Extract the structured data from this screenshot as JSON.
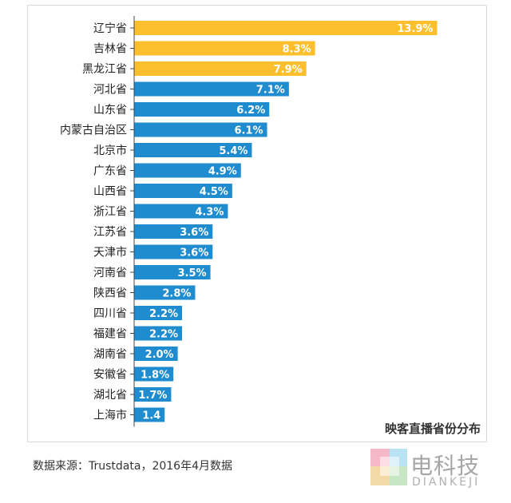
{
  "chart_data": {
    "type": "bar",
    "orientation": "horizontal",
    "title": "映客直播省份分布",
    "categories": [
      "辽宁省",
      "吉林省",
      "黑龙江省",
      "河北省",
      "山东省",
      "内蒙古自治区",
      "北京市",
      "广东省",
      "山西省",
      "浙江省",
      "江苏省",
      "天津市",
      "河南省",
      "陕西省",
      "四川省",
      "福建省",
      "湖南省",
      "安徽省",
      "湖北省",
      "上海市"
    ],
    "values": [
      13.9,
      8.3,
      7.9,
      7.1,
      6.2,
      6.1,
      5.4,
      4.9,
      4.5,
      4.3,
      3.6,
      3.6,
      3.5,
      2.8,
      2.2,
      2.2,
      2.0,
      1.8,
      1.7,
      1.4
    ],
    "value_labels": [
      "13.9%",
      "8.3%",
      "7.9%",
      "7.1%",
      "6.2%",
      "6.1%",
      "5.4%",
      "4.9%",
      "4.5%",
      "4.3%",
      "3.6%",
      "3.6%",
      "3.5%",
      "2.8%",
      "2.2%",
      "2.2%",
      "2.0%",
      "1.8%",
      "1.7%",
      "1.4"
    ],
    "highlight_count": 3,
    "colors": {
      "highlight": "#fdbf2d",
      "normal": "#1f8ccf",
      "axis": "#444444",
      "label_text": "#ffffff"
    },
    "xlim": [
      0,
      14
    ]
  },
  "source_text": "数据来源：Trustdata，2016年4月数据",
  "logo": {
    "name": "电科技",
    "sub": "DIANKEJI"
  }
}
